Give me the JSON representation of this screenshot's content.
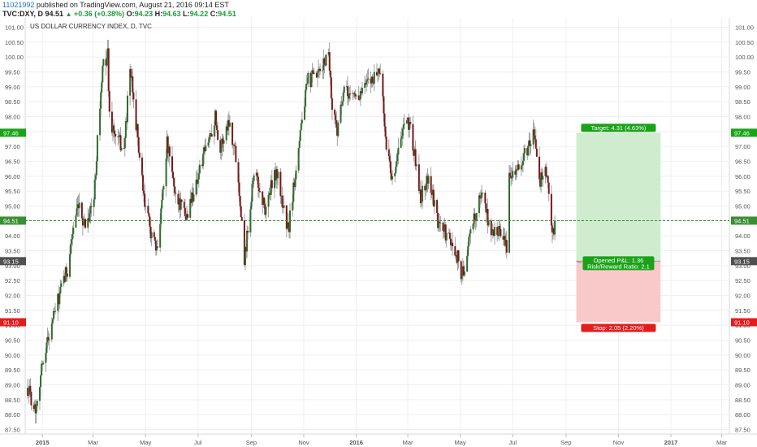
{
  "header": {
    "author": "11021992",
    "published": "published on TradingView.com, August 21, 2016 09:14 EST",
    "symbol": "TVC:DXY, D",
    "last": "94.51",
    "change": "+0.36 (+0.38%)",
    "open_label": "O:",
    "open": "94.23",
    "high_label": "H:",
    "high": "94.63",
    "low_label": "L:",
    "low": "94.22",
    "close_label": "C:",
    "close": "94.51"
  },
  "colors": {
    "up_candle": "#2e6b2b",
    "down_candle": "#7a1616",
    "wick": "#8c8c8c",
    "price_line": "#3b8e33",
    "target_zone": "#cfeccf",
    "stop_zone": "#f9c9c9",
    "target_label": "#1aa318",
    "stop_label": "#e51c1c",
    "entry_label": "#505050"
  },
  "chart_data": {
    "type": "candlestick",
    "title": "US DOLLAR CURRENCY INDEX, D, TVC",
    "ylim": [
      87.35,
      101.15
    ],
    "y_ticks": [
      "87.50",
      "88.00",
      "88.50",
      "89.00",
      "89.50",
      "90.00",
      "90.50",
      "91.00",
      "91.50",
      "92.00",
      "92.50",
      "93.00",
      "93.50",
      "94.00",
      "94.50",
      "95.00",
      "95.50",
      "96.00",
      "96.50",
      "97.00",
      "97.50",
      "98.00",
      "98.50",
      "99.00",
      "99.50",
      "100.00",
      "100.50",
      "101.00"
    ],
    "x_ticks": [
      "2015",
      "Mar",
      "May",
      "Jul",
      "Sep",
      "Nov",
      "2016",
      "Mar",
      "May",
      "Jul",
      "Sep",
      "Nov",
      "2017",
      "Mar"
    ],
    "x_range": [
      "2014-12-12",
      "2017-03-10"
    ],
    "grid": true,
    "anchors": [
      [
        "2014-12-15",
        88.9
      ],
      [
        "2014-12-24",
        88.2
      ],
      [
        "2015-01-02",
        89.9
      ],
      [
        "2015-01-15",
        91.4
      ],
      [
        "2015-01-30",
        92.9
      ],
      [
        "2015-02-06",
        94.3
      ],
      [
        "2015-02-12",
        94.9
      ],
      [
        "2015-02-20",
        94.4
      ],
      [
        "2015-03-02",
        95.2
      ],
      [
        "2015-03-06",
        97.3
      ],
      [
        "2015-03-13",
        99.8
      ],
      [
        "2015-03-18",
        100.1
      ],
      [
        "2015-03-20",
        98.0
      ],
      [
        "2015-03-26",
        97.4
      ],
      [
        "2015-04-06",
        96.9
      ],
      [
        "2015-04-13",
        99.6
      ],
      [
        "2015-04-20",
        97.8
      ],
      [
        "2015-04-29",
        95.2
      ],
      [
        "2015-05-06",
        94.3
      ],
      [
        "2015-05-14",
        93.4
      ],
      [
        "2015-05-26",
        97.1
      ],
      [
        "2015-06-04",
        95.5
      ],
      [
        "2015-06-17",
        94.6
      ],
      [
        "2015-07-07",
        96.6
      ],
      [
        "2015-07-21",
        98.0
      ],
      [
        "2015-07-27",
        96.9
      ],
      [
        "2015-08-06",
        97.9
      ],
      [
        "2015-08-14",
        96.7
      ],
      [
        "2015-08-20",
        94.9
      ],
      [
        "2015-08-24",
        93.2
      ],
      [
        "2015-09-04",
        96.2
      ],
      [
        "2015-09-17",
        94.9
      ],
      [
        "2015-09-30",
        96.2
      ],
      [
        "2015-10-14",
        94.1
      ],
      [
        "2015-10-28",
        97.6
      ],
      [
        "2015-11-06",
        99.2
      ],
      [
        "2015-11-19",
        99.4
      ],
      [
        "2015-11-30",
        100.2
      ],
      [
        "2015-12-04",
        98.3
      ],
      [
        "2015-12-10",
        97.6
      ],
      [
        "2015-12-18",
        98.8
      ],
      [
        "2016-01-04",
        98.7
      ],
      [
        "2016-01-14",
        99.1
      ],
      [
        "2016-01-29",
        99.6
      ],
      [
        "2016-02-05",
        97.0
      ],
      [
        "2016-02-12",
        95.9
      ],
      [
        "2016-02-25",
        97.6
      ],
      [
        "2016-03-03",
        97.8
      ],
      [
        "2016-03-16",
        95.3
      ],
      [
        "2016-03-25",
        96.0
      ],
      [
        "2016-04-05",
        94.4
      ],
      [
        "2016-04-12",
        94.2
      ],
      [
        "2016-04-28",
        93.3
      ],
      [
        "2016-05-03",
        92.6
      ],
      [
        "2016-05-17",
        94.6
      ],
      [
        "2016-05-27",
        95.5
      ],
      [
        "2016-06-06",
        94.0
      ],
      [
        "2016-06-16",
        94.3
      ],
      [
        "2016-06-24",
        93.5
      ],
      [
        "2016-06-27",
        96.2
      ],
      [
        "2016-07-08",
        96.2
      ],
      [
        "2016-07-25",
        97.4
      ],
      [
        "2016-08-02",
        95.9
      ],
      [
        "2016-08-08",
        96.3
      ],
      [
        "2016-08-17",
        94.1
      ],
      [
        "2016-08-19",
        94.51
      ]
    ],
    "last_price": 94.51,
    "position": {
      "entry": 93.15,
      "target": 97.46,
      "stop": 91.1,
      "start": "2016-09-13",
      "end": "2016-12-20",
      "target_text": "Target: 4.31 (4.63%)",
      "stop_text": "Stop: 2.05 (2.20%)",
      "pl_text": "Opened P&L: 1.36",
      "rr_text": "Risk/Reward Ratio: 2.1"
    },
    "price_tags": [
      "97.46",
      "94.51",
      "93.15",
      "91.10"
    ]
  }
}
